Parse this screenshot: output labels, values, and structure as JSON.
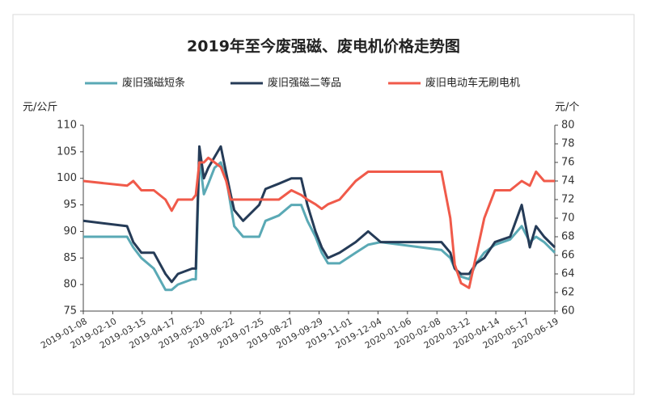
{
  "chart_data": {
    "type": "line",
    "title": "2019年至今废强磁、废电机价格走势图",
    "y_label": "元/公斤",
    "y2_label": "元/个",
    "x": [
      "2019-01-08",
      "2019-02-26",
      "2019-03-05",
      "2019-03-14",
      "2019-03-28",
      "2019-04-10",
      "2019-04-17",
      "2019-04-24",
      "2019-05-10",
      "2019-05-14",
      "2019-05-18",
      "2019-05-23",
      "2019-05-28",
      "2019-06-04",
      "2019-06-11",
      "2019-06-17",
      "2019-06-22",
      "2019-06-26",
      "2019-07-06",
      "2019-07-24",
      "2019-07-31",
      "2019-08-15",
      "2019-08-29",
      "2019-09-09",
      "2019-09-16",
      "2019-09-25",
      "2019-10-02",
      "2019-10-09",
      "2019-10-22",
      "2019-11-09",
      "2019-11-23",
      "2019-12-07",
      "2020-02-13",
      "2020-02-23",
      "2020-02-28",
      "2020-03-06",
      "2020-03-15",
      "2020-03-23",
      "2020-04-01",
      "2020-04-13",
      "2020-04-30",
      "2020-05-13",
      "2020-05-22",
      "2020-05-29",
      "2020-06-07",
      "2020-06-19"
    ],
    "series": [
      {
        "name": "废旧强磁短条",
        "color": "#5aa9b5",
        "values": [
          89,
          89,
          87,
          85,
          83,
          79,
          79,
          80,
          81,
          81,
          104,
          97,
          99,
          102,
          103,
          100,
          95,
          91,
          89,
          89,
          92,
          93,
          95,
          95,
          92,
          89,
          86,
          84,
          84,
          86,
          87.5,
          88,
          86.5,
          85,
          83,
          81.5,
          81,
          84,
          86,
          87.5,
          88.5,
          91,
          88,
          89,
          88,
          86
        ]
      },
      {
        "name": "废旧强磁二等品",
        "color": "#253b57",
        "values": [
          92,
          91,
          88,
          86,
          86,
          82,
          80.5,
          82,
          83,
          83,
          106,
          100,
          102,
          104,
          106,
          101,
          97,
          94,
          92,
          95,
          98,
          99,
          100,
          100,
          95,
          90,
          87,
          85,
          86,
          88,
          90,
          88,
          88,
          86,
          83,
          82,
          82,
          84,
          85,
          88,
          89,
          95,
          87,
          91,
          89,
          87
        ]
      },
      {
        "name": "废旧电动车无刷电机",
        "color": "#f05a4a",
        "axis": "y2",
        "values": [
          74,
          73.5,
          74,
          73,
          73,
          72,
          70.8,
          72,
          72,
          72.5,
          76,
          76,
          76.5,
          76,
          75.5,
          74,
          72,
          72,
          72,
          72,
          72,
          72,
          73,
          72.5,
          72,
          71.5,
          71,
          71.5,
          72,
          74,
          75,
          75,
          75,
          70,
          65,
          63,
          62.5,
          66,
          70,
          73,
          73,
          74,
          73.5,
          75,
          74,
          74
        ]
      }
    ],
    "xlim": [
      "2019-01-08",
      "2020-06-19"
    ],
    "xticks": [
      "2019-01-08",
      "2019-02-10",
      "2019-03-15",
      "2019-04-17",
      "2019-05-20",
      "2019-06-22",
      "2019-07-25",
      "2019-08-27",
      "2019-09-29",
      "2019-11-01",
      "2019-12-04",
      "2020-01-06",
      "2020-02-08",
      "2020-03-12",
      "2020-04-14",
      "2020-05-17",
      "2020-06-19"
    ],
    "ylim": [
      75,
      110
    ],
    "yticks": [
      75,
      80,
      85,
      90,
      95,
      100,
      105,
      110
    ],
    "y2lim": [
      60,
      80
    ],
    "y2ticks": [
      60,
      62,
      64,
      66,
      68,
      70,
      72,
      74,
      76,
      78,
      80
    ],
    "legend": "top"
  }
}
